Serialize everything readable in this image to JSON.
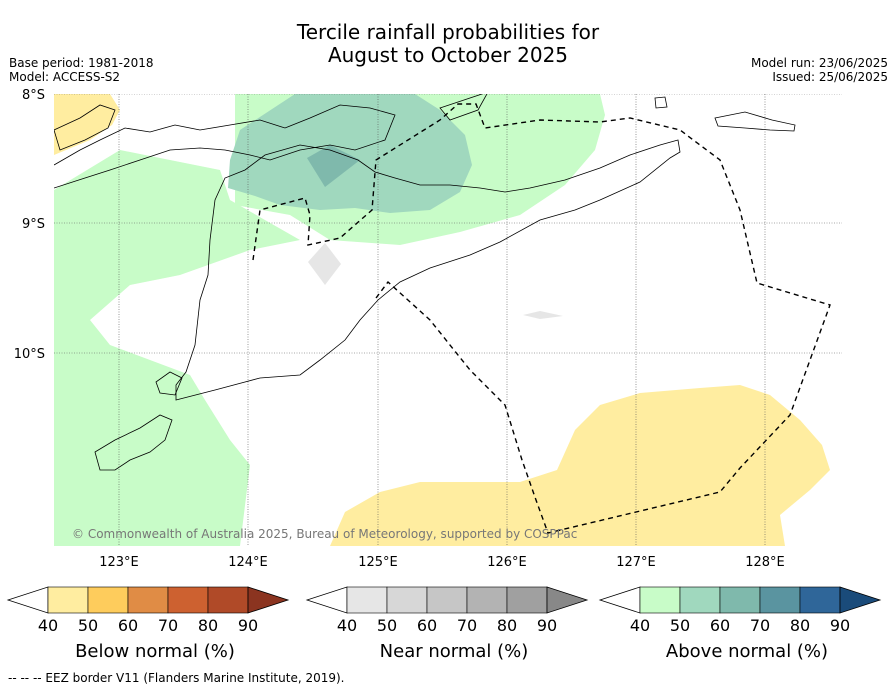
{
  "title": {
    "line1": "Tercile rainfall probabilities for",
    "line2": "August to October 2025"
  },
  "meta": {
    "base_period": "Base period: 1981-2018",
    "model": "Model: ACCESS-S2",
    "model_run": "Model run: 23/06/2025",
    "issued": "Issued: 25/06/2025"
  },
  "map": {
    "lat_labels": [
      "8°S",
      "9°S",
      "10°S"
    ],
    "lon_labels": [
      "123°E",
      "124°E",
      "125°E",
      "126°E",
      "127°E",
      "128°E"
    ],
    "copyright": "© Commonwealth of Australia 2025, Bureau of Meteorology, supported by COSPPac"
  },
  "colorbars": [
    {
      "name": "below",
      "label": "Below normal (%)",
      "ticks": [
        "40",
        "50",
        "60",
        "70",
        "80",
        "90"
      ],
      "colors": [
        "#ffffff",
        "#ffeda0",
        "#fecc5c",
        "#e08c45",
        "#cd6130",
        "#b04a28",
        "#8b3420"
      ]
    },
    {
      "name": "near",
      "label": "Near normal (%)",
      "ticks": [
        "40",
        "50",
        "60",
        "70",
        "80",
        "90"
      ],
      "colors": [
        "#ffffff",
        "#e6e6e6",
        "#d7d7d7",
        "#c6c6c6",
        "#b3b3b3",
        "#a0a0a0",
        "#888888"
      ]
    },
    {
      "name": "above",
      "label": "Above normal (%)",
      "ticks": [
        "40",
        "50",
        "60",
        "70",
        "80",
        "90"
      ],
      "colors": [
        "#ffffff",
        "#c8fcc8",
        "#a0d8be",
        "#7fb9ac",
        "#5a94a0",
        "#2f6699",
        "#1a4b7a"
      ]
    }
  ],
  "footer": "-- -- -- EEZ border V11 (Flanders Marine Institute, 2019)."
}
